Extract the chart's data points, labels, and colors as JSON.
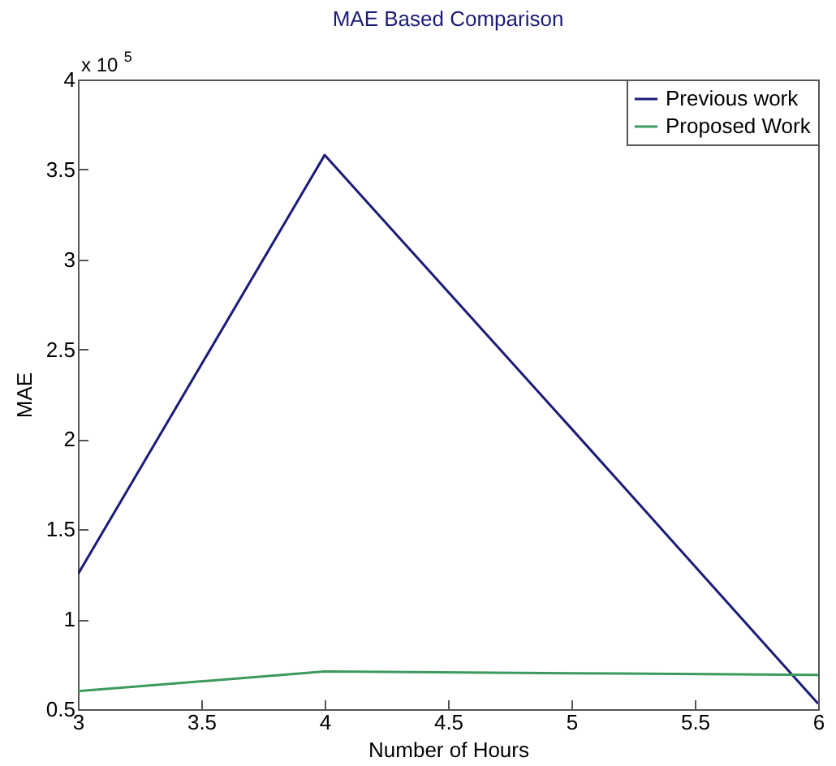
{
  "chart_data": {
    "type": "line",
    "title": "MAE Based Comparison",
    "xlabel": "Number of Hours",
    "ylabel": "MAE",
    "annotations": [
      "x 10$^{5}$"
    ],
    "x": [
      3,
      4,
      5,
      6
    ],
    "series": [
      {
        "name": "Previous work",
        "color": "#1c1c78",
        "values": [
          1.25,
          3.58,
          2.06,
          0.53
        ]
      },
      {
        "name": "Proposed Work",
        "color": "#3c9a5c",
        "values": [
          0.6,
          0.71,
          0.7,
          0.69
        ]
      }
    ],
    "xlim": [
      3,
      6
    ],
    "xticks": [
      3,
      3.5,
      4,
      4.5,
      5,
      5.5,
      6
    ],
    "ylim": [
      0.5,
      4
    ],
    "yticks": [
      0.5,
      1,
      1.5,
      2,
      2.5,
      3,
      3.5,
      4
    ],
    "grid": false,
    "legend": "top right",
    "marker": "none",
    "line_style": "solid"
  }
}
